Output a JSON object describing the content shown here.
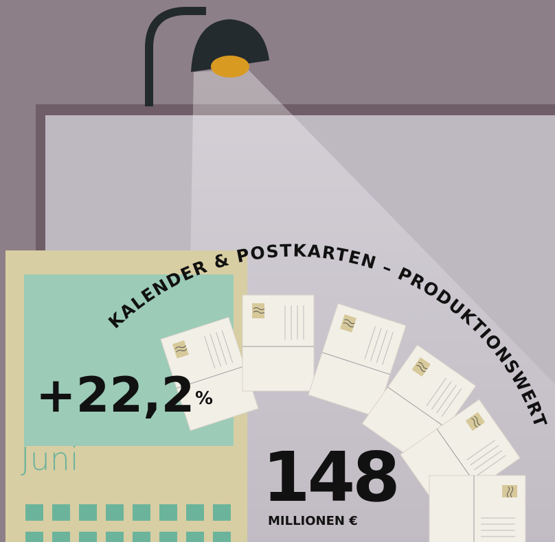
{
  "title": "KALENDER & POSTKARTEN – PRODUKTIONSWERT",
  "change": {
    "value": "+22,2",
    "unit": "%"
  },
  "month": "Juni",
  "total": {
    "value": "148",
    "unit": "MILLIONEN €"
  }
}
